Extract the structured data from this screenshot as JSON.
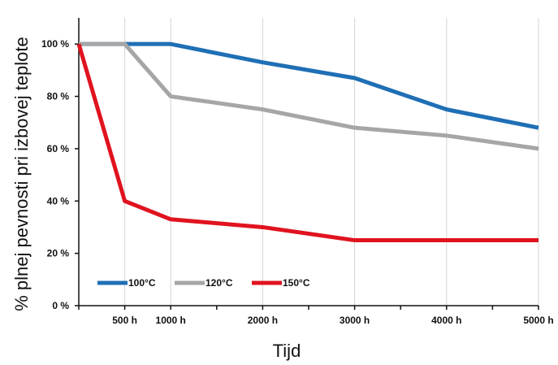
{
  "chart_data": {
    "type": "line",
    "title": "",
    "xlabel": "Tijd",
    "ylabel": "% plnej pevnosti pri izbovej teplote",
    "x": [
      0,
      500,
      1000,
      2000,
      3000,
      4000,
      5000
    ],
    "x_tick_labels": [
      "500 h",
      "1000 h",
      "2000 h",
      "3000 h",
      "4000 h",
      "5000 h"
    ],
    "y_tick_labels": [
      "0 %",
      "20 %",
      "40 %",
      "60 %",
      "80 %",
      "100 %"
    ],
    "y_ticks": [
      0,
      20,
      40,
      60,
      80,
      100
    ],
    "ylim": [
      0,
      110
    ],
    "grid": "vertical",
    "legend_position": "bottom-left",
    "series": [
      {
        "name": "100°C",
        "color": "#1f6fb5",
        "values": [
          100,
          100,
          100,
          93,
          87,
          75,
          68
        ]
      },
      {
        "name": "120°C",
        "color": "#a6a6a6",
        "values": [
          100,
          100,
          80,
          75,
          68,
          65,
          60
        ]
      },
      {
        "name": "150°C",
        "color": "#e0131f",
        "values": [
          100,
          40,
          33,
          30,
          25,
          25,
          25
        ]
      }
    ]
  }
}
